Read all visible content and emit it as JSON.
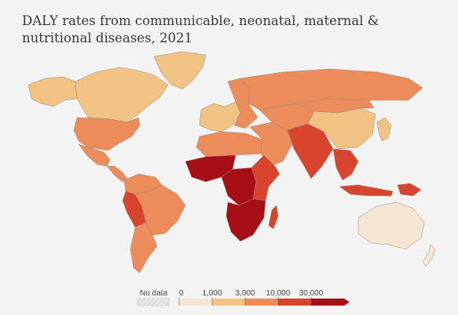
{
  "title": "DALY rates from communicable, neonatal, maternal & nutritional diseases, 2021",
  "legend": {
    "no_data_label": "No data",
    "ticks": [
      "0",
      "1,000",
      "3,000",
      "10,000",
      "30,000"
    ],
    "colors": [
      "#f4e6d3",
      "#f0c283",
      "#ec8c5a",
      "#d9442f",
      "#a50f15"
    ]
  },
  "colors": {
    "background": "#f3f3f3",
    "ocean": "#f3f3f3",
    "no_data": "#e9e9e9",
    "border": "#9a8a80"
  },
  "regions": [
    {
      "name": "Alaska",
      "bucket": 1
    },
    {
      "name": "Canada",
      "bucket": 1
    },
    {
      "name": "Greenland",
      "bucket": 1
    },
    {
      "name": "United States",
      "bucket": 2
    },
    {
      "name": "Mexico",
      "bucket": 2
    },
    {
      "name": "Central America",
      "bucket": 2
    },
    {
      "name": "Colombia & Venezuela",
      "bucket": 2
    },
    {
      "name": "Peru & Bolivia",
      "bucket": 3
    },
    {
      "name": "Brazil",
      "bucket": 2
    },
    {
      "name": "Southern Cone",
      "bucket": 2
    },
    {
      "name": "Western Europe",
      "bucket": 1
    },
    {
      "name": "Eastern Europe",
      "bucket": 2
    },
    {
      "name": "Russia",
      "bucket": 2
    },
    {
      "name": "North Africa",
      "bucket": 2
    },
    {
      "name": "Middle East",
      "bucket": 2
    },
    {
      "name": "West Africa",
      "bucket": 4
    },
    {
      "name": "Central Africa",
      "bucket": 4
    },
    {
      "name": "East Africa",
      "bucket": 3
    },
    {
      "name": "Southern Africa",
      "bucket": 4
    },
    {
      "name": "Madagascar",
      "bucket": 3
    },
    {
      "name": "Central Asia",
      "bucket": 2
    },
    {
      "name": "South Asia",
      "bucket": 3
    },
    {
      "name": "China",
      "bucket": 1
    },
    {
      "name": "Mongolia",
      "bucket": 2
    },
    {
      "name": "Southeast Asia",
      "bucket": 3
    },
    {
      "name": "Indonesia",
      "bucket": 3
    },
    {
      "name": "Papua New Guinea",
      "bucket": 3
    },
    {
      "name": "Japan & Korea",
      "bucket": 1
    },
    {
      "name": "Australia",
      "bucket": 0
    },
    {
      "name": "New Zealand",
      "bucket": 0
    }
  ]
}
